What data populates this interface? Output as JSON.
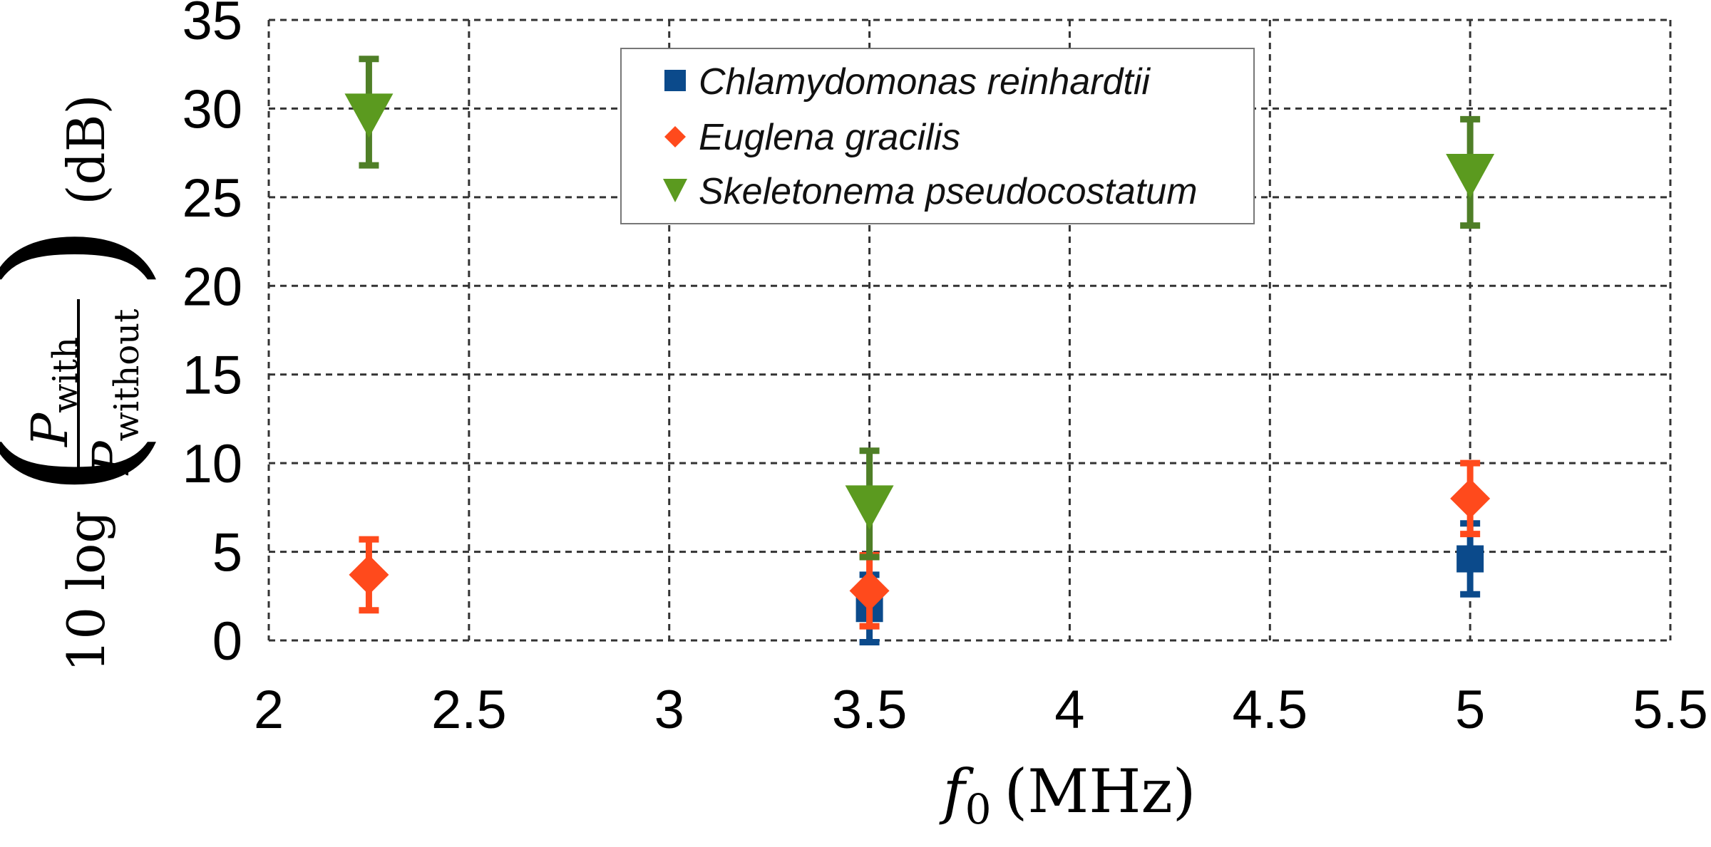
{
  "chart_data": {
    "type": "scatter",
    "xlim": [
      2,
      5.5
    ],
    "ylim": [
      0,
      35
    ],
    "x_ticks": [
      "2",
      "2.5",
      "3",
      "3.5",
      "4",
      "4.5",
      "5",
      "5.5"
    ],
    "y_ticks": [
      "0",
      "5",
      "10",
      "15",
      "20",
      "25",
      "30",
      "35"
    ],
    "grid": true,
    "legend_position": "top-center",
    "xlabel": {
      "var": "f",
      "sub": "0",
      "unit": "(MHz)"
    },
    "ylabel": {
      "prefix": "10 log",
      "numerator": "P",
      "numerator_sub": "with",
      "denominator": "P",
      "denominator_sub": "without",
      "unit": "(dB)"
    },
    "series": [
      {
        "name": "Chlamydomonas reinhardtii",
        "marker": "square",
        "color": "#0b4a8b",
        "points": [
          {
            "x": 3.5,
            "y": 1.8,
            "err": 1.9
          },
          {
            "x": 5.0,
            "y": 4.6,
            "err": 2.0
          }
        ]
      },
      {
        "name": "Euglena gracilis",
        "marker": "diamond",
        "color": "#ff4a1c",
        "points": [
          {
            "x": 2.25,
            "y": 3.7,
            "err": 2.0
          },
          {
            "x": 3.5,
            "y": 2.8,
            "err": 2.0
          },
          {
            "x": 5.0,
            "y": 8.0,
            "err": 2.0
          }
        ]
      },
      {
        "name": "Skeletonema pseudocostatum",
        "marker": "triangle-down",
        "color": "#5b9a1f",
        "err_color": "#4f7f27",
        "points": [
          {
            "x": 2.25,
            "y": 29.8,
            "err": 3.0
          },
          {
            "x": 3.5,
            "y": 7.7,
            "err": 3.0
          },
          {
            "x": 5.0,
            "y": 26.4,
            "err": 3.0
          }
        ]
      }
    ]
  }
}
